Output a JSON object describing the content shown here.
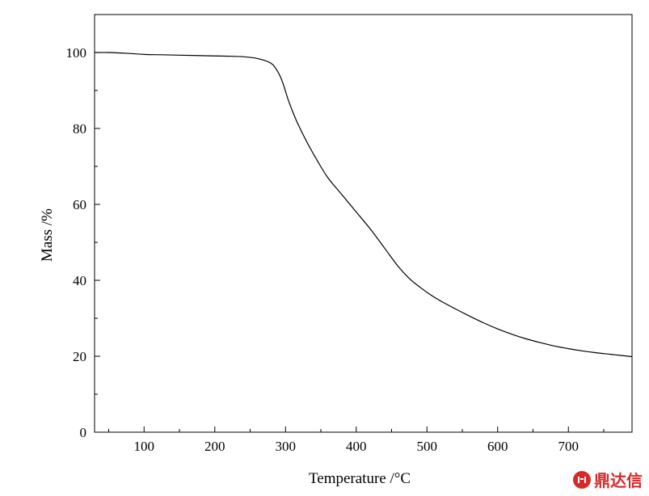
{
  "chart_data": {
    "type": "line",
    "xlabel": "Temperature /°C",
    "ylabel": "Mass /%",
    "xlim": [
      30,
      790
    ],
    "ylim": [
      0,
      110
    ],
    "xticks": [
      100,
      200,
      300,
      400,
      500,
      600,
      700
    ],
    "yticks": [
      0,
      20,
      40,
      60,
      80,
      100
    ],
    "grid": false,
    "legend": "none",
    "series": [
      {
        "color": "#000000",
        "x": [
          30,
          50,
          75,
          100,
          125,
          150,
          175,
          200,
          225,
          240,
          255,
          265,
          275,
          282,
          288,
          293,
          298,
          303,
          310,
          318,
          330,
          345,
          360,
          380,
          400,
          420,
          440,
          460,
          475,
          490,
          505,
          520,
          540,
          560,
          580,
          600,
          620,
          640,
          660,
          680,
          700,
          720,
          740,
          760,
          790
        ],
        "y": [
          100,
          100,
          99.8,
          99.5,
          99.4,
          99.3,
          99.2,
          99.1,
          99.0,
          98.9,
          98.6,
          98.2,
          97.6,
          96.8,
          95.3,
          93.5,
          91.0,
          88.0,
          84.5,
          81.0,
          76.5,
          71.5,
          67.0,
          62.5,
          58.0,
          53.5,
          48.5,
          43.5,
          40.5,
          38.2,
          36.2,
          34.5,
          32.5,
          30.6,
          28.8,
          27.2,
          25.8,
          24.6,
          23.6,
          22.7,
          22.0,
          21.4,
          20.9,
          20.5,
          19.9
        ]
      }
    ]
  },
  "watermark": {
    "text": "鼎达信",
    "icon": "dingdaxin-logo-icon",
    "color": "#d62a2a"
  }
}
